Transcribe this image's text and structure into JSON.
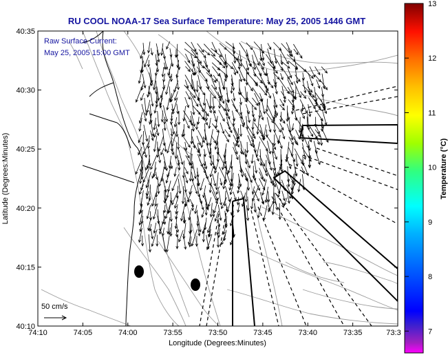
{
  "chart_data": {
    "type": "vector-field-map",
    "title": "RU COOL  NOAA-17  Sea Surface Temperature:  May 25, 2005 1446 GMT",
    "legend_lines": [
      "Raw Surface Current:",
      "May 25, 2005 15:00 GMT"
    ],
    "xlabel": "Longitude (Degrees:Minutes)",
    "ylabel": "Latitude (Degrees:Minutes)",
    "x_ticks": [
      "74:10",
      "74:05",
      "74:00",
      "73:55",
      "73:50",
      "73:45",
      "73:40",
      "73:35",
      "73:3"
    ],
    "y_ticks": [
      "40:10",
      "40:15",
      "40:20",
      "40:25",
      "40:30",
      "40:35"
    ],
    "xlim_deg_west": [
      74.1667,
      73.5
    ],
    "ylim_deg_north": [
      40.1667,
      40.5833
    ],
    "scale_label": "50 cm/s",
    "colorbar": {
      "label": "Temperature (°C)",
      "ticks": [
        "7",
        "8",
        "9",
        "10",
        "11",
        "12",
        "13"
      ],
      "range": [
        6.6,
        13
      ]
    }
  }
}
